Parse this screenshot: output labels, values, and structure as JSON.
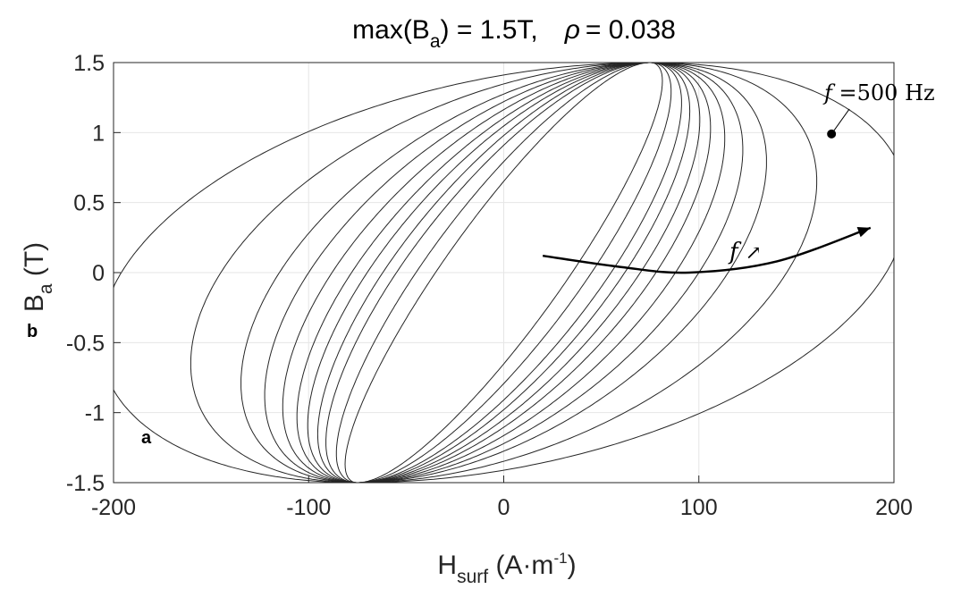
{
  "chart_data": {
    "type": "line",
    "title": {
      "prefix": "max(B",
      "sub": "a",
      "suffix": ") = 1.5T,",
      "rho_symbol": "ρ",
      "rho_value": "= 0.038"
    },
    "xlabel": {
      "main": "H",
      "sub": "surf",
      "unit": " (A·m",
      "sup": "-1",
      "close": ")"
    },
    "ylabel": {
      "main": "B",
      "sub": "a",
      "unit": " (T)"
    },
    "xlim": [
      -200,
      200
    ],
    "ylim": [
      -1.5,
      1.5
    ],
    "x_ticks": [
      -200,
      -100,
      0,
      100,
      200
    ],
    "x_tick_labels": [
      "-200",
      "-100",
      "0",
      "100",
      "200"
    ],
    "y_ticks": [
      1.5,
      1,
      0.5,
      0,
      -0.5,
      -1,
      -1.5
    ],
    "y_tick_labels": [
      "1.5",
      "1",
      "0.5",
      "0",
      "-0.5",
      "-1",
      "-1.5"
    ],
    "grid": true,
    "line_color": "#262626",
    "loop_peak_B": 1.5,
    "loop_tip_H": 75,
    "loop_max_H_approx": [
      35,
      45,
      55,
      62,
      70,
      78,
      88,
      100,
      115,
      145,
      196
    ],
    "annotations": {
      "frequency_label": {
        "f": "f",
        "text": " =500 Hz",
        "marker_H": 168,
        "marker_B": 0.99
      },
      "arrow_label": {
        "f": "f",
        "arrow": "↗"
      },
      "arrow_path_H": [
        20,
        60,
        95,
        140,
        188
      ],
      "arrow_path_B": [
        0.12,
        0.04,
        0.0,
        0.08,
        0.32
      ]
    },
    "panel_labels": [
      "a",
      "b"
    ]
  }
}
